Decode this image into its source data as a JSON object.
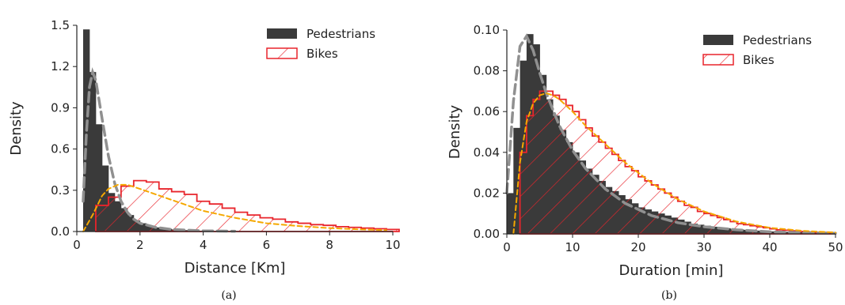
{
  "chart_data": [
    {
      "type": "bar",
      "panel_caption": "(a)",
      "xlabel": "Distance [Km]",
      "ylabel": "Density",
      "xlim": [
        0,
        10
      ],
      "ylim": [
        0,
        1.5
      ],
      "xticks": [
        0,
        2,
        4,
        6,
        8,
        10
      ],
      "xtick_labels": [
        "0",
        "2",
        "4",
        "6",
        "8",
        "10"
      ],
      "yticks": [
        0,
        0.3,
        0.6,
        0.9,
        1.2,
        1.5
      ],
      "ytick_labels": [
        "0.0",
        "0.3",
        "0.6",
        "0.9",
        "1.2",
        "1.5"
      ],
      "legend_position": "top-right",
      "series": [
        {
          "name": "Pedestrians",
          "style": "filled-histogram",
          "color": "#3a3a3a",
          "bin_width": 0.2,
          "bin_start": 0.2,
          "values": [
            1.47,
            1.16,
            0.78,
            0.48,
            0.28,
            0.22,
            0.17,
            0.12,
            0.08,
            0.06,
            0.04,
            0.03,
            0.025,
            0.02,
            0.015,
            0.012,
            0.01,
            0.008,
            0.006,
            0.005,
            0.004,
            0.003
          ]
        },
        {
          "name": "Bikes",
          "style": "hatched-step-histogram",
          "color": "#e8242b",
          "bin_width": 0.4,
          "bin_start": 0.6,
          "values": [
            0.19,
            0.25,
            0.33,
            0.37,
            0.36,
            0.31,
            0.29,
            0.27,
            0.22,
            0.2,
            0.17,
            0.14,
            0.12,
            0.1,
            0.09,
            0.07,
            0.06,
            0.05,
            0.045,
            0.035,
            0.03,
            0.025,
            0.02,
            0.015
          ],
          "step_tail_x": [
            10,
            0
          ]
        }
      ],
      "fit_curves": [
        {
          "color": "#909090",
          "dash": "dashed",
          "x": [
            0.2,
            0.3,
            0.4,
            0.5,
            0.6,
            0.8,
            1.0,
            1.2,
            1.4,
            1.6,
            1.8,
            2.0,
            2.5,
            3.0,
            4.0,
            5.0
          ],
          "y": [
            0.22,
            0.7,
            1.05,
            1.16,
            1.1,
            0.82,
            0.55,
            0.35,
            0.22,
            0.14,
            0.09,
            0.06,
            0.03,
            0.015,
            0.005,
            0.002
          ]
        },
        {
          "color": "#f5a800",
          "dash": "dashed",
          "x": [
            0.2,
            0.5,
            0.8,
            1.0,
            1.3,
            1.6,
            2.0,
            2.5,
            3.0,
            4.0,
            5.0,
            6.0,
            7.0,
            8.0,
            9.0,
            9.8
          ],
          "y": [
            0.0,
            0.12,
            0.26,
            0.31,
            0.34,
            0.34,
            0.31,
            0.27,
            0.23,
            0.15,
            0.1,
            0.06,
            0.04,
            0.025,
            0.015,
            0.01
          ]
        }
      ]
    },
    {
      "type": "bar",
      "panel_caption": "(b)",
      "xlabel": "Duration [min]",
      "ylabel": "Density",
      "xlim": [
        0,
        50
      ],
      "ylim": [
        0,
        0.1
      ],
      "xticks": [
        0,
        10,
        20,
        30,
        40,
        50
      ],
      "xtick_labels": [
        "0",
        "10",
        "20",
        "30",
        "40",
        "50"
      ],
      "yticks": [
        0,
        0.02,
        0.04,
        0.06,
        0.08,
        0.1
      ],
      "ytick_labels": [
        "0.00",
        "0.02",
        "0.04",
        "0.06",
        "0.08",
        "0.10"
      ],
      "legend_position": "top-right",
      "series": [
        {
          "name": "Pedestrians",
          "style": "filled-histogram",
          "color": "#3a3a3a",
          "bin_width": 1,
          "bin_start": 0,
          "values": [
            0.02,
            0.052,
            0.085,
            0.098,
            0.093,
            0.078,
            0.066,
            0.058,
            0.051,
            0.045,
            0.04,
            0.036,
            0.032,
            0.029,
            0.026,
            0.023,
            0.021,
            0.019,
            0.017,
            0.015,
            0.013,
            0.012,
            0.011,
            0.01,
            0.009,
            0.008,
            0.007,
            0.006,
            0.005,
            0.0045,
            0.004,
            0.0035,
            0.003,
            0.0028,
            0.0025,
            0.0022,
            0.002,
            0.0018,
            0.0016,
            0.0014,
            0.0012,
            0.0011,
            0.001,
            0.0009,
            0.0008,
            0.0007,
            0.0006,
            0.0005,
            0.0004,
            0.0003
          ]
        },
        {
          "name": "Bikes",
          "style": "hatched-step-histogram",
          "color": "#e8242b",
          "bin_width": 1,
          "bin_start": 2,
          "values": [
            0.04,
            0.058,
            0.066,
            0.07,
            0.07,
            0.068,
            0.066,
            0.063,
            0.06,
            0.056,
            0.052,
            0.048,
            0.045,
            0.042,
            0.039,
            0.036,
            0.033,
            0.031,
            0.028,
            0.026,
            0.024,
            0.022,
            0.02,
            0.018,
            0.016,
            0.014,
            0.013,
            0.011,
            0.01,
            0.009,
            0.008,
            0.007,
            0.006,
            0.005,
            0.0045,
            0.004,
            0.0035,
            0.003,
            0.0025,
            0.002,
            0.0018,
            0.0015,
            0.0012,
            0.001,
            0.0009,
            0.0008,
            0.0007,
            0.0006
          ],
          "step_tail_x": [
            50,
            0
          ]
        }
      ],
      "fit_curves": [
        {
          "color": "#909090",
          "dash": "dashed",
          "x": [
            0,
            1,
            2,
            3,
            4,
            5,
            6,
            8,
            10,
            12,
            15,
            18,
            22,
            26,
            30,
            35,
            40,
            45,
            50
          ],
          "y": [
            0.02,
            0.065,
            0.092,
            0.097,
            0.09,
            0.079,
            0.069,
            0.053,
            0.041,
            0.032,
            0.022,
            0.015,
            0.009,
            0.0055,
            0.0035,
            0.002,
            0.001,
            0.0006,
            0.0003
          ]
        },
        {
          "color": "#f5a800",
          "dash": "dashed",
          "x": [
            1,
            2,
            3,
            4,
            5,
            6,
            7,
            8,
            10,
            12,
            15,
            18,
            22,
            26,
            30,
            35,
            40,
            45,
            50
          ],
          "y": [
            0.0,
            0.035,
            0.055,
            0.064,
            0.068,
            0.069,
            0.068,
            0.066,
            0.06,
            0.053,
            0.044,
            0.035,
            0.025,
            0.017,
            0.011,
            0.006,
            0.003,
            0.0015,
            0.0007
          ]
        }
      ]
    }
  ]
}
